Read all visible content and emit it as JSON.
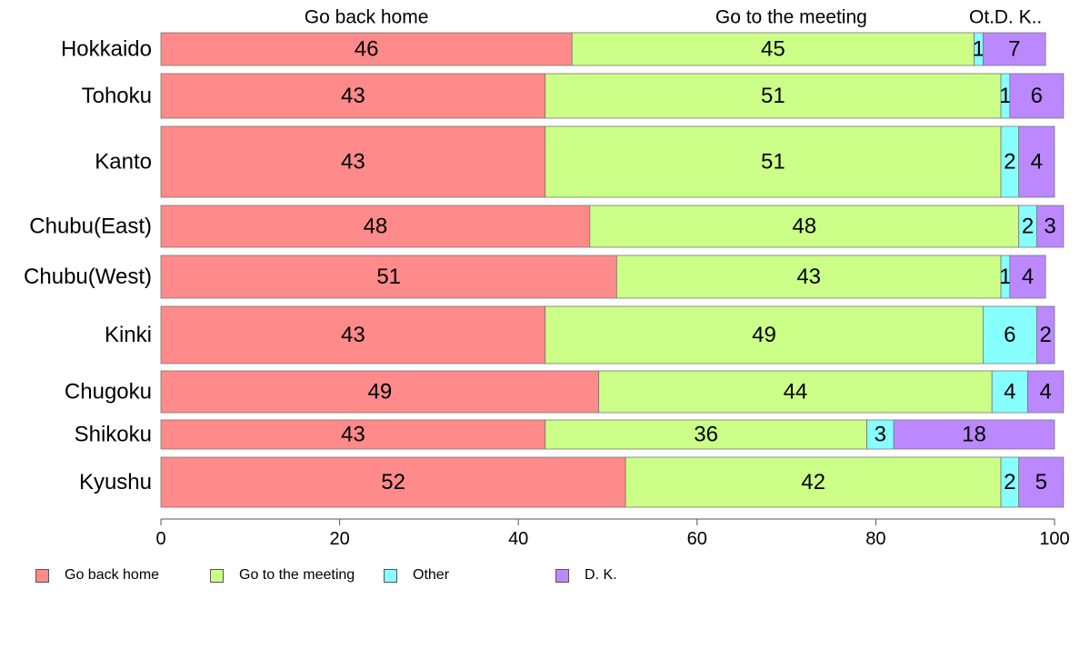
{
  "chart_data": {
    "type": "bar",
    "orientation": "horizontal-stacked-100",
    "categories": [
      "Hokkaido",
      "Tohoku",
      "Kanto",
      "Chubu(East)",
      "Chubu(West)",
      "Kinki",
      "Chugoku",
      "Shikoku",
      "Kyushu"
    ],
    "series": [
      {
        "name": "Go back home",
        "color": "#ff8a8a",
        "values": [
          46,
          43,
          43,
          48,
          51,
          43,
          49,
          43,
          52
        ]
      },
      {
        "name": "Go to the meeting",
        "color": "#ccff88",
        "values": [
          45,
          51,
          51,
          48,
          43,
          49,
          44,
          36,
          42
        ]
      },
      {
        "name": "Other",
        "color": "#88ffff",
        "values": [
          1,
          1,
          2,
          2,
          1,
          6,
          4,
          3,
          2
        ]
      },
      {
        "name": "D. K.",
        "color": "#bb88ff",
        "values": [
          7,
          6,
          4,
          3,
          4,
          2,
          4,
          18,
          5
        ]
      }
    ],
    "top_labels": [
      "Go back home",
      "Go to the meeting",
      "Ot.",
      "D. K.."
    ],
    "xlim": [
      0,
      100
    ],
    "xticks": [
      "0",
      "20",
      "40",
      "60",
      "80",
      "100"
    ],
    "grid": false,
    "legend_position": "bottom"
  }
}
